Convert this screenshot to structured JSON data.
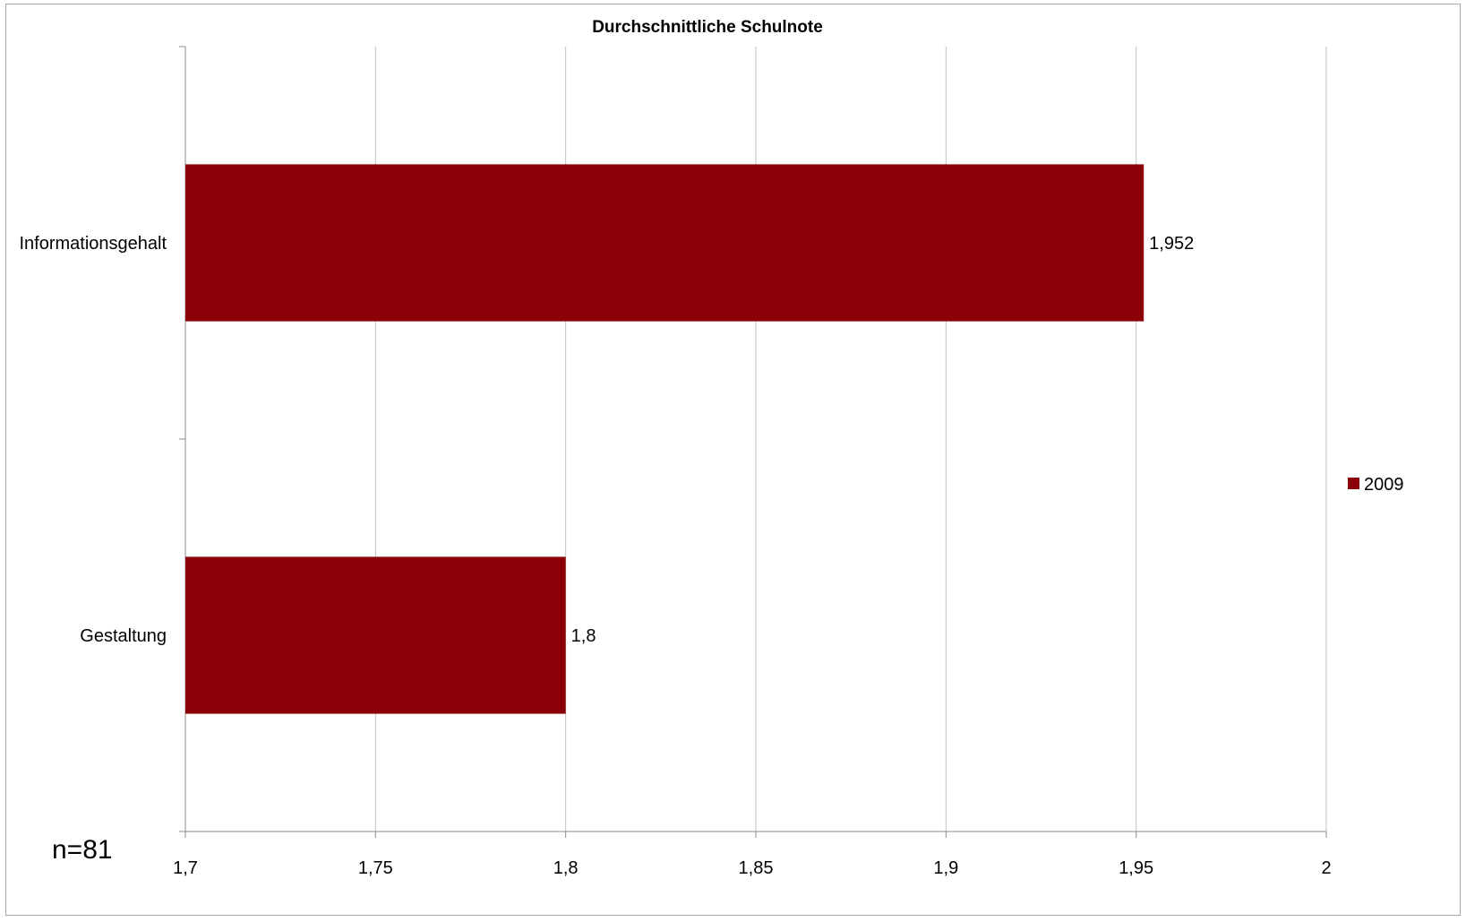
{
  "chart_data": {
    "type": "bar",
    "orientation": "horizontal",
    "title": "Durchschnittliche Schulnote",
    "categories": [
      "Informationsgehalt",
      "Gestaltung"
    ],
    "series": [
      {
        "name": "2009",
        "values": [
          1.952,
          1.8
        ],
        "color": "#8b0008"
      }
    ],
    "data_labels": [
      "1,952",
      "1,8"
    ],
    "xlim": [
      1.7,
      2.0
    ],
    "x_ticks": [
      1.7,
      1.75,
      1.8,
      1.85,
      1.9,
      1.95,
      2.0
    ],
    "x_tick_labels": [
      "1,7",
      "1,75",
      "1,8",
      "1,85",
      "1,9",
      "1,95",
      "2"
    ],
    "grid": "vertical",
    "legend_position": "right",
    "annotation": "n=81"
  }
}
